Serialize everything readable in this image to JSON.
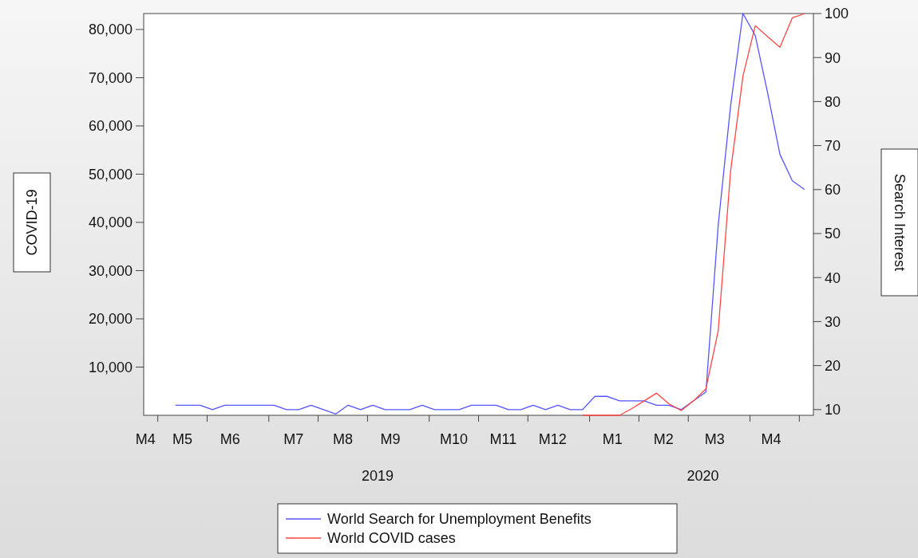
{
  "chart_data": {
    "type": "line",
    "ylabel": "COVID-19",
    "y2label": "Search Interest",
    "legend": "bottom",
    "grid": false,
    "x": [
      "2019-05-05",
      "2019-05-12",
      "2019-05-19",
      "2019-05-26",
      "2019-06-02",
      "2019-06-09",
      "2019-06-16",
      "2019-06-23",
      "2019-06-30",
      "2019-07-07",
      "2019-07-14",
      "2019-07-21",
      "2019-07-28",
      "2019-08-04",
      "2019-08-11",
      "2019-08-18",
      "2019-08-25",
      "2019-09-01",
      "2019-09-08",
      "2019-09-15",
      "2019-09-22",
      "2019-09-29",
      "2019-10-06",
      "2019-10-13",
      "2019-10-20",
      "2019-10-27",
      "2019-11-03",
      "2019-11-10",
      "2019-11-17",
      "2019-11-24",
      "2019-12-01",
      "2019-12-08",
      "2019-12-15",
      "2019-12-22",
      "2019-12-29",
      "2020-01-05",
      "2020-01-12",
      "2020-01-19",
      "2020-01-26",
      "2020-02-02",
      "2020-02-09",
      "2020-02-16",
      "2020-02-23",
      "2020-03-01",
      "2020-03-08",
      "2020-03-15",
      "2020-03-22",
      "2020-03-29",
      "2020-04-05",
      "2020-04-12",
      "2020-04-19",
      "2020-04-26"
    ],
    "xlim": [
      "2019-04-17",
      "2020-05-01"
    ],
    "xticks": [
      {
        "value": "2019-04-18",
        "label": "M4"
      },
      {
        "value": "2019-04-25",
        "label": null
      },
      {
        "value": "2019-05-09",
        "label": "M5"
      },
      {
        "value": "2019-05-23",
        "label": null
      },
      {
        "value": "2019-06-05",
        "label": "M6"
      },
      {
        "value": "2019-06-27",
        "label": null
      },
      {
        "value": "2019-07-11",
        "label": "M7"
      },
      {
        "value": "2019-07-25",
        "label": null
      },
      {
        "value": "2019-08-08",
        "label": "M8"
      },
      {
        "value": "2019-08-22",
        "label": null
      },
      {
        "value": "2019-09-04",
        "label": "M9"
      },
      {
        "value": "2019-09-26",
        "label": null
      },
      {
        "value": "2019-10-10",
        "label": "M10"
      },
      {
        "value": "2019-10-24",
        "label": null
      },
      {
        "value": "2019-11-07",
        "label": "M11"
      },
      {
        "value": "2019-11-21",
        "label": null
      },
      {
        "value": "2019-12-05",
        "label": "M12"
      },
      {
        "value": "2019-12-26",
        "label": null
      },
      {
        "value": "2020-01-08",
        "label": "M1"
      },
      {
        "value": "2020-01-23",
        "label": null
      },
      {
        "value": "2020-02-06",
        "label": "M2"
      },
      {
        "value": "2020-02-20",
        "label": null
      },
      {
        "value": "2020-03-06",
        "label": "M3"
      },
      {
        "value": "2020-03-26",
        "label": null
      },
      {
        "value": "2020-04-07",
        "label": "M4"
      },
      {
        "value": "2020-04-23",
        "label": null
      }
    ],
    "ylim": [
      0,
      83300
    ],
    "yticks": [
      {
        "value": 10000,
        "label": "10,000"
      },
      {
        "value": 20000,
        "label": "20,000"
      },
      {
        "value": 30000,
        "label": "30,000"
      },
      {
        "value": 40000,
        "label": "40,000"
      },
      {
        "value": 50000,
        "label": "50,000"
      },
      {
        "value": 60000,
        "label": "60,000"
      },
      {
        "value": 70000,
        "label": "70,000"
      },
      {
        "value": 80000,
        "label": "80,000"
      }
    ],
    "y2lim": [
      8.7,
      100
    ],
    "y2ticks": [
      10,
      20,
      30,
      40,
      50,
      60,
      70,
      80,
      90,
      100
    ],
    "annotations": [
      "2019",
      "2020"
    ],
    "series": [
      {
        "name": "World Search for Unemployment Benefits",
        "color": "#5555ff",
        "axis": "y2",
        "values": [
          11,
          11,
          11,
          10,
          11,
          11,
          11,
          11,
          11,
          10,
          10,
          11,
          10,
          9,
          11,
          10,
          11,
          10,
          10,
          10,
          11,
          10,
          10,
          10,
          11,
          11,
          11,
          10,
          10,
          11,
          10,
          11,
          10,
          10,
          13,
          13,
          12,
          12,
          12,
          11,
          11,
          10,
          12,
          14,
          52,
          79,
          100,
          95,
          82,
          68,
          62,
          60
        ]
      },
      {
        "name": "World COVID cases",
        "color": "#ff4444",
        "axis": "y",
        "values": [
          null,
          null,
          null,
          null,
          null,
          null,
          null,
          null,
          null,
          null,
          null,
          null,
          null,
          null,
          null,
          null,
          null,
          null,
          null,
          null,
          null,
          null,
          null,
          null,
          null,
          null,
          null,
          null,
          null,
          null,
          null,
          null,
          null,
          0,
          0,
          0,
          0,
          1400,
          3000,
          4600,
          2400,
          1000,
          3000,
          5500,
          17600,
          50600,
          70300,
          80800,
          78500,
          76300,
          82400,
          83300
        ]
      }
    ]
  }
}
